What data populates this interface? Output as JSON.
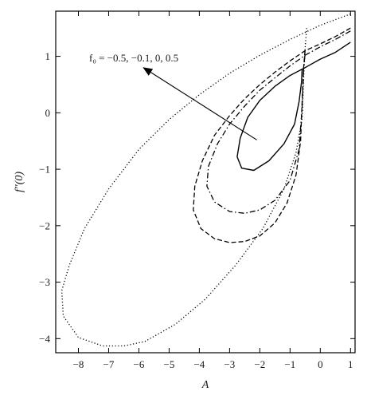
{
  "chart_data": {
    "type": "line",
    "title": "",
    "xlabel": "A",
    "ylabel": "f″(0)",
    "xlim": [
      -8.75,
      1.15
    ],
    "ylim": [
      -4.25,
      1.8
    ],
    "x_ticks": [
      -8,
      -7,
      -6,
      -5,
      -4,
      -3,
      -2,
      -1,
      0,
      1
    ],
    "x_tick_labels": [
      "−8",
      "−7",
      "−6",
      "−5",
      "−4",
      "−3",
      "−2",
      "−1",
      "0",
      "1"
    ],
    "y_ticks": [
      -4,
      -3,
      -2,
      -1,
      0,
      1
    ],
    "y_tick_labels": [
      "−4",
      "−3",
      "−2",
      "−1",
      "0",
      "1"
    ],
    "grid": false,
    "annotation": {
      "text": "f₀ = −0.5, −0.1, 0, 0.5",
      "arrow_from": [
        -2.1,
        -0.48
      ],
      "arrow_to": [
        -5.85,
        0.8
      ]
    },
    "series": [
      {
        "line_style": "solid",
        "color": "#000000",
        "points": [
          [
            1.0,
            1.25
          ],
          [
            0.5,
            1.07
          ],
          [
            0.0,
            0.95
          ],
          [
            -0.5,
            0.8
          ],
          [
            -1.0,
            0.66
          ],
          [
            -1.5,
            0.47
          ],
          [
            -2.0,
            0.22
          ],
          [
            -2.4,
            -0.08
          ],
          [
            -2.65,
            -0.45
          ],
          [
            -2.75,
            -0.78
          ],
          [
            -2.6,
            -0.98
          ],
          [
            -2.2,
            -1.02
          ],
          [
            -1.7,
            -0.85
          ],
          [
            -1.2,
            -0.55
          ],
          [
            -0.85,
            -0.2
          ],
          [
            -0.7,
            0.2
          ],
          [
            -0.62,
            0.55
          ],
          [
            -0.6,
            0.78
          ]
        ]
      },
      {
        "line_style": "dashdot",
        "color": "#000000",
        "points": [
          [
            1.0,
            1.45
          ],
          [
            0.5,
            1.3
          ],
          [
            0.0,
            1.17
          ],
          [
            -0.5,
            1.02
          ],
          [
            -1.0,
            0.83
          ],
          [
            -1.5,
            0.62
          ],
          [
            -2.0,
            0.4
          ],
          [
            -2.5,
            0.12
          ],
          [
            -3.0,
            -0.2
          ],
          [
            -3.4,
            -0.55
          ],
          [
            -3.7,
            -0.95
          ],
          [
            -3.75,
            -1.3
          ],
          [
            -3.5,
            -1.58
          ],
          [
            -3.0,
            -1.75
          ],
          [
            -2.5,
            -1.78
          ],
          [
            -2.0,
            -1.72
          ],
          [
            -1.5,
            -1.55
          ],
          [
            -1.0,
            -1.2
          ],
          [
            -0.7,
            -0.65
          ],
          [
            -0.6,
            0.1
          ],
          [
            -0.55,
            0.8
          ],
          [
            -0.5,
            1.05
          ]
        ]
      },
      {
        "line_style": "dashed",
        "color": "#000000",
        "points": [
          [
            1.0,
            1.5
          ],
          [
            0.5,
            1.35
          ],
          [
            0.0,
            1.22
          ],
          [
            -0.5,
            1.1
          ],
          [
            -1.0,
            0.92
          ],
          [
            -1.5,
            0.72
          ],
          [
            -2.0,
            0.5
          ],
          [
            -2.5,
            0.25
          ],
          [
            -3.0,
            -0.05
          ],
          [
            -3.5,
            -0.4
          ],
          [
            -3.9,
            -0.85
          ],
          [
            -4.15,
            -1.3
          ],
          [
            -4.2,
            -1.72
          ],
          [
            -3.95,
            -2.05
          ],
          [
            -3.5,
            -2.23
          ],
          [
            -3.0,
            -2.3
          ],
          [
            -2.5,
            -2.28
          ],
          [
            -2.0,
            -2.18
          ],
          [
            -1.5,
            -1.95
          ],
          [
            -1.1,
            -1.6
          ],
          [
            -0.8,
            -1.1
          ],
          [
            -0.65,
            -0.5
          ],
          [
            -0.6,
            0.2
          ],
          [
            -0.55,
            0.8
          ],
          [
            -0.5,
            1.12
          ]
        ]
      },
      {
        "line_style": "dotted",
        "color": "#000000",
        "points": [
          [
            1.0,
            1.75
          ],
          [
            0.0,
            1.55
          ],
          [
            -1.0,
            1.3
          ],
          [
            -2.0,
            1.02
          ],
          [
            -3.0,
            0.7
          ],
          [
            -4.0,
            0.32
          ],
          [
            -5.0,
            -0.12
          ],
          [
            -6.0,
            -0.65
          ],
          [
            -7.0,
            -1.35
          ],
          [
            -7.8,
            -2.05
          ],
          [
            -8.3,
            -2.7
          ],
          [
            -8.55,
            -3.15
          ],
          [
            -8.5,
            -3.6
          ],
          [
            -8.0,
            -3.98
          ],
          [
            -7.2,
            -4.13
          ],
          [
            -6.5,
            -4.13
          ],
          [
            -5.8,
            -4.05
          ],
          [
            -4.8,
            -3.75
          ],
          [
            -3.8,
            -3.3
          ],
          [
            -2.8,
            -2.7
          ],
          [
            -1.9,
            -2.05
          ],
          [
            -1.2,
            -1.35
          ],
          [
            -0.8,
            -0.7
          ],
          [
            -0.6,
            -0.1
          ],
          [
            -0.55,
            0.6
          ],
          [
            -0.5,
            1.15
          ],
          [
            -0.45,
            1.5
          ]
        ]
      }
    ]
  }
}
